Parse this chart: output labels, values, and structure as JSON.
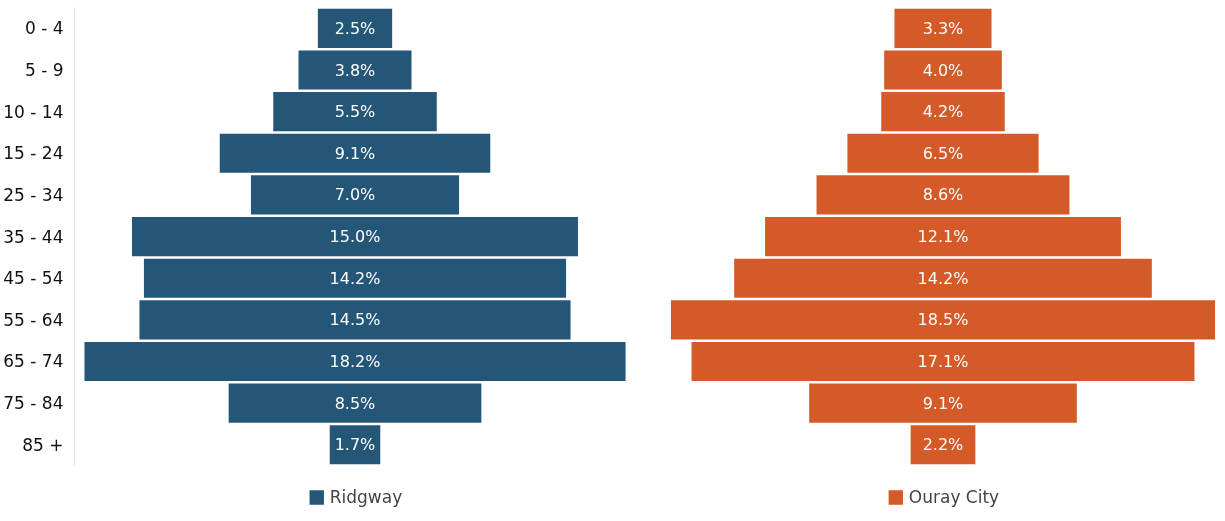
{
  "chart_data": {
    "type": "other",
    "categories": [
      "0 - 4",
      "5 - 9",
      "10 - 14",
      "15 - 24",
      "25 - 34",
      "35 - 44",
      "45 - 54",
      "55 - 64",
      "65 - 74",
      "75 - 84",
      "85 +"
    ],
    "series": [
      {
        "name": "Ridgway",
        "color": "#245678",
        "values": [
          2.5,
          3.8,
          5.5,
          9.1,
          7.0,
          15.0,
          14.2,
          14.5,
          18.2,
          8.5,
          1.7
        ],
        "value_labels": [
          "2.5%",
          "3.8%",
          "5.5%",
          "9.1%",
          "7.0%",
          "15.0%",
          "14.2%",
          "14.5%",
          "18.2%",
          "8.5%",
          "1.7%"
        ]
      },
      {
        "name": "Ouray City",
        "color": "#d45a27",
        "values": [
          3.3,
          4.0,
          4.2,
          6.5,
          8.6,
          12.1,
          14.2,
          18.5,
          17.1,
          9.1,
          2.2
        ],
        "value_labels": [
          "3.3%",
          "4.0%",
          "4.2%",
          "6.5%",
          "8.6%",
          "12.1%",
          "14.2%",
          "18.5%",
          "17.1%",
          "9.1%",
          "2.2%"
        ]
      }
    ],
    "legend": "bottom"
  }
}
